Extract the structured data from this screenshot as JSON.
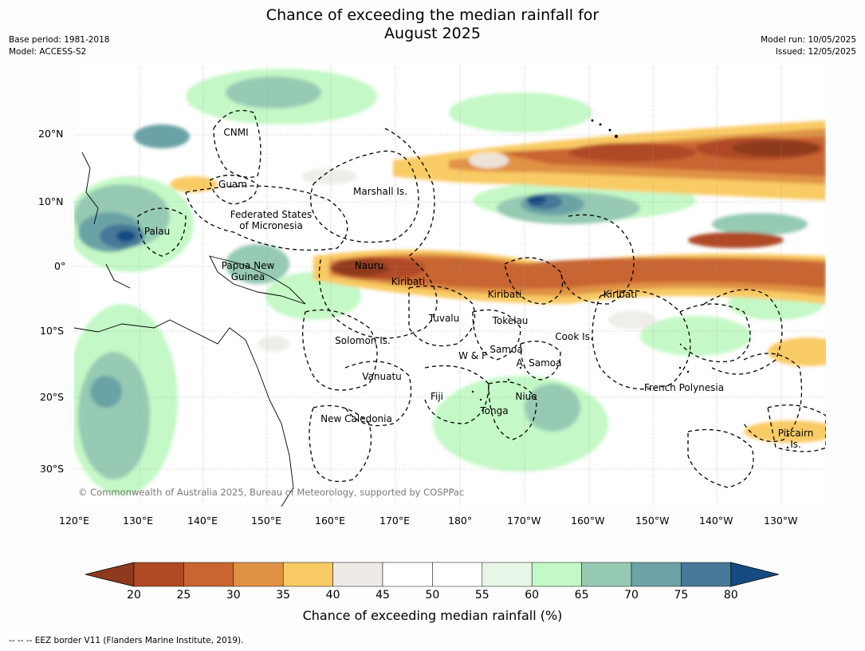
{
  "title": "Chance of exceeding the median rainfall for\nAugust 2025",
  "title_line1": "Chance of exceeding the median rainfall for",
  "title_line2": "August 2025",
  "meta": {
    "base_period": "Base period: 1981-2018",
    "model": "Model: ACCESS-S2",
    "model_run": "Model run: 10/05/2025",
    "issued": "Issued: 12/05/2025"
  },
  "map": {
    "lat_ticks": [
      "20°N",
      "10°N",
      "0°",
      "10°S",
      "20°S",
      "30°S"
    ],
    "lon_ticks": [
      "120°E",
      "130°E",
      "140°E",
      "150°E",
      "160°E",
      "170°E",
      "180°",
      "170°W",
      "160°W",
      "150°W",
      "140°W",
      "130°W"
    ],
    "places": [
      "CNMI",
      "Guam",
      "Marshall Is.",
      "Federated States\nof Micronesia",
      "Palau",
      "Papua New\nGuinea",
      "Nauru",
      "Kiribati",
      "Kiribati",
      "Kiribati",
      "Tuvalu",
      "Tokelau",
      "Solomon Is.",
      "Cook Is.",
      "Samoa",
      "W & F",
      "A. Samoa",
      "Vanuatu",
      "Fiji",
      "Niue",
      "French Polynesia",
      "Tonga",
      "New Caledonia",
      "Pitcairn\nIs."
    ],
    "copyright": "© Commonwealth of Australia 2025, Bureau of Meteorology, supported by COSPPac"
  },
  "colorbar": {
    "ticks": [
      "20",
      "25",
      "30",
      "35",
      "40",
      "45",
      "50",
      "55",
      "60",
      "65",
      "70",
      "75",
      "80"
    ],
    "colors": [
      "#8e3a1e",
      "#b04a25",
      "#c96530",
      "#e09244",
      "#f9cb65",
      "#eeebe6",
      "#ffffff",
      "#ffffff",
      "#e8f6e8",
      "#c4f8c6",
      "#96cab3",
      "#6ba3a6",
      "#477898",
      "#154b82"
    ],
    "label": "Chance of exceeding median rainfall (%)"
  },
  "footnote": "--  --  -- EEZ border V11 (Flanders Marine Institute, 2019)."
}
